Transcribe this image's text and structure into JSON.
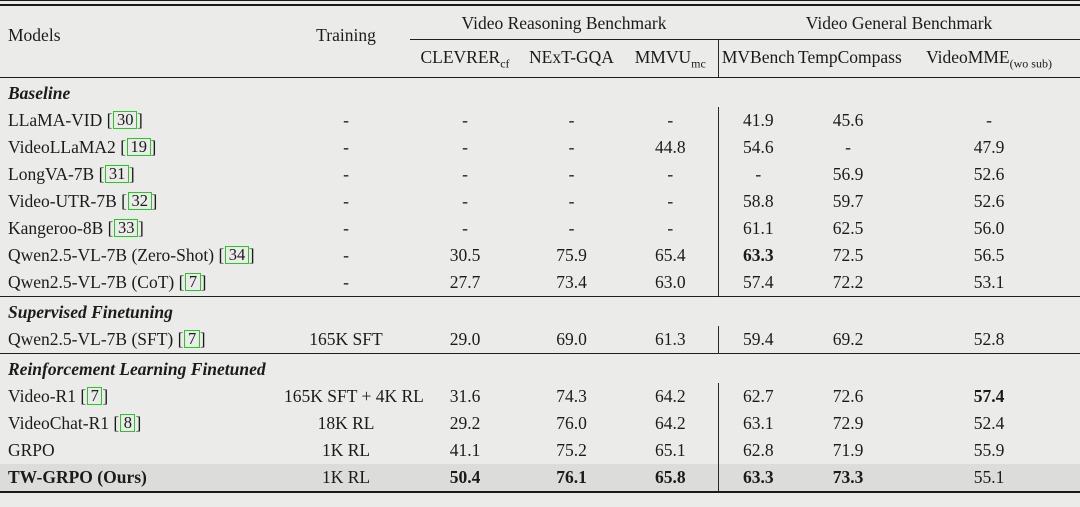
{
  "page": {
    "background": "#ebebe9",
    "highlight_row_color": "#dcdcda",
    "rule_color": "#1f1f1f",
    "citation_box_color": "#1ecd1e"
  },
  "table": {
    "models_header": "Models",
    "training_header": "Training",
    "groups": [
      {
        "label": "Video Reasoning Benchmark"
      },
      {
        "label": "Video General Benchmark"
      }
    ],
    "metrics": [
      {
        "name": "CLEVRER",
        "sub": "cf"
      },
      {
        "name": "NExT-GQA",
        "sub": ""
      },
      {
        "name": "MMVU",
        "sub": "mc"
      },
      {
        "name": "MVBench",
        "sub": ""
      },
      {
        "name": "TempCompass",
        "sub": ""
      },
      {
        "name": "VideoMME",
        "sub": "(wo sub)"
      }
    ],
    "sections": [
      {
        "title": "Baseline",
        "rows": [
          {
            "model": "LLaMA-VID",
            "cite": "30",
            "training": "-",
            "values": [
              "-",
              "-",
              "-",
              "41.9",
              "45.6",
              "-"
            ],
            "bold": []
          },
          {
            "model": "VideoLLaMA2",
            "cite": "19",
            "training": "-",
            "values": [
              "-",
              "-",
              "44.8",
              "54.6",
              "-",
              "47.9"
            ],
            "bold": []
          },
          {
            "model": "LongVA-7B",
            "cite": "31",
            "training": "-",
            "values": [
              "-",
              "-",
              "-",
              "-",
              "56.9",
              "52.6"
            ],
            "bold": []
          },
          {
            "model": "Video-UTR-7B",
            "cite": "32",
            "training": "-",
            "values": [
              "-",
              "-",
              "-",
              "58.8",
              "59.7",
              "52.6"
            ],
            "bold": []
          },
          {
            "model": "Kangeroo-8B",
            "cite": "33",
            "training": "-",
            "values": [
              "-",
              "-",
              "-",
              "61.1",
              "62.5",
              "56.0"
            ],
            "bold": []
          },
          {
            "model": "Qwen2.5-VL-7B (Zero-Shot)",
            "cite": "34",
            "training": "-",
            "values": [
              "30.5",
              "75.9",
              "65.4",
              "63.3",
              "72.5",
              "56.5"
            ],
            "bold": [
              3
            ]
          },
          {
            "model": "Qwen2.5-VL-7B (CoT)",
            "cite": "7",
            "training": "-",
            "values": [
              "27.7",
              "73.4",
              "63.0",
              "57.4",
              "72.2",
              "53.1"
            ],
            "bold": []
          }
        ]
      },
      {
        "title": "Supervised Finetuning",
        "rows": [
          {
            "model": "Qwen2.5-VL-7B (SFT)",
            "cite": "7",
            "training": "165K SFT",
            "values": [
              "29.0",
              "69.0",
              "61.3",
              "59.4",
              "69.2",
              "52.8"
            ],
            "bold": []
          }
        ]
      },
      {
        "title": "Reinforcement Learning Finetuned",
        "rows": [
          {
            "model": "Video-R1",
            "cite": "7",
            "training": "165K SFT + 4K RL",
            "values": [
              "31.6",
              "74.3",
              "64.2",
              "62.7",
              "72.6",
              "57.4"
            ],
            "bold": [
              5
            ]
          },
          {
            "model": "VideoChat-R1",
            "cite": "8",
            "training": "18K RL",
            "values": [
              "29.2",
              "76.0",
              "64.2",
              "63.1",
              "72.9",
              "52.4"
            ],
            "bold": []
          },
          {
            "model": "GRPO",
            "cite": "",
            "training": "1K RL",
            "values": [
              "41.1",
              "75.2",
              "65.1",
              "62.8",
              "71.9",
              "55.9"
            ],
            "bold": []
          },
          {
            "model": "TW-GRPO (Ours)",
            "cite": "",
            "training": "1K RL",
            "values": [
              "50.4",
              "76.1",
              "65.8",
              "63.3",
              "73.3",
              "55.1"
            ],
            "bold": [
              0,
              1,
              2,
              3,
              4
            ],
            "model_bold": true,
            "highlight": true
          }
        ]
      }
    ]
  }
}
